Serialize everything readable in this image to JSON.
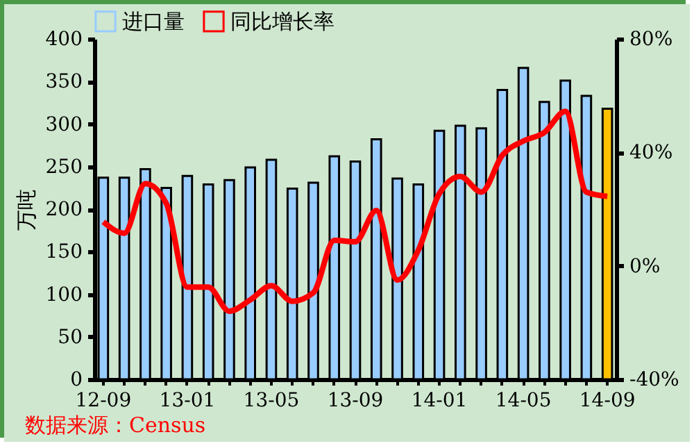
{
  "chart_data": {
    "type": "bar",
    "categories": [
      "12-09",
      null,
      null,
      null,
      "13-01",
      null,
      null,
      null,
      "13-05",
      null,
      null,
      null,
      "13-09",
      null,
      null,
      null,
      "14-01",
      null,
      null,
      null,
      "14-05",
      null,
      null,
      null,
      "14-09"
    ],
    "ylabel": "万吨",
    "series": [
      {
        "name": "进口量",
        "color": "#99ccff",
        "colors": [
          "#99ccff",
          "#99ccff",
          "#99ccff",
          "#99ccff",
          "#99ccff",
          "#99ccff",
          "#99ccff",
          "#99ccff",
          "#99ccff",
          "#99ccff",
          "#99ccff",
          "#99ccff",
          "#99ccff",
          "#99ccff",
          "#99ccff",
          "#99ccff",
          "#99ccff",
          "#99ccff",
          "#99ccff",
          "#99ccff",
          "#99ccff",
          "#99ccff",
          "#99ccff",
          "#99ccff",
          "#ffc000"
        ],
        "values": [
          237,
          237,
          247,
          225,
          239,
          229,
          234,
          249,
          258,
          224,
          231,
          262,
          256,
          282,
          236,
          229,
          292,
          298,
          295,
          340,
          366,
          326,
          351,
          333,
          318
        ]
      },
      {
        "name": "同比增长率",
        "type": "line",
        "axis": "y2",
        "color": "#ff0000",
        "values": [
          15.5,
          11.5,
          29,
          22,
          -7.5,
          -7.5,
          -16,
          -12,
          -7,
          -12.5,
          -9.5,
          9,
          8.5,
          19.5,
          -5,
          5.5,
          25.5,
          31.5,
          26,
          39,
          44,
          47,
          54.5,
          26,
          24.5
        ]
      }
    ],
    "ylim": [
      0,
      400
    ],
    "yticks": [
      0,
      50,
      100,
      150,
      200,
      250,
      300,
      350,
      400
    ],
    "y2lim": [
      -40,
      80
    ],
    "y2ticks": [
      {
        "value": -40,
        "label": "-40%"
      },
      {
        "value": 0,
        "label": "0%"
      },
      {
        "value": 40,
        "label": "40%"
      },
      {
        "value": 80,
        "label": "80%"
      }
    ],
    "legend": "top",
    "grid": false,
    "marker": "none",
    "line_style": "solid",
    "annotations": [
      "数据来源：Census"
    ]
  }
}
